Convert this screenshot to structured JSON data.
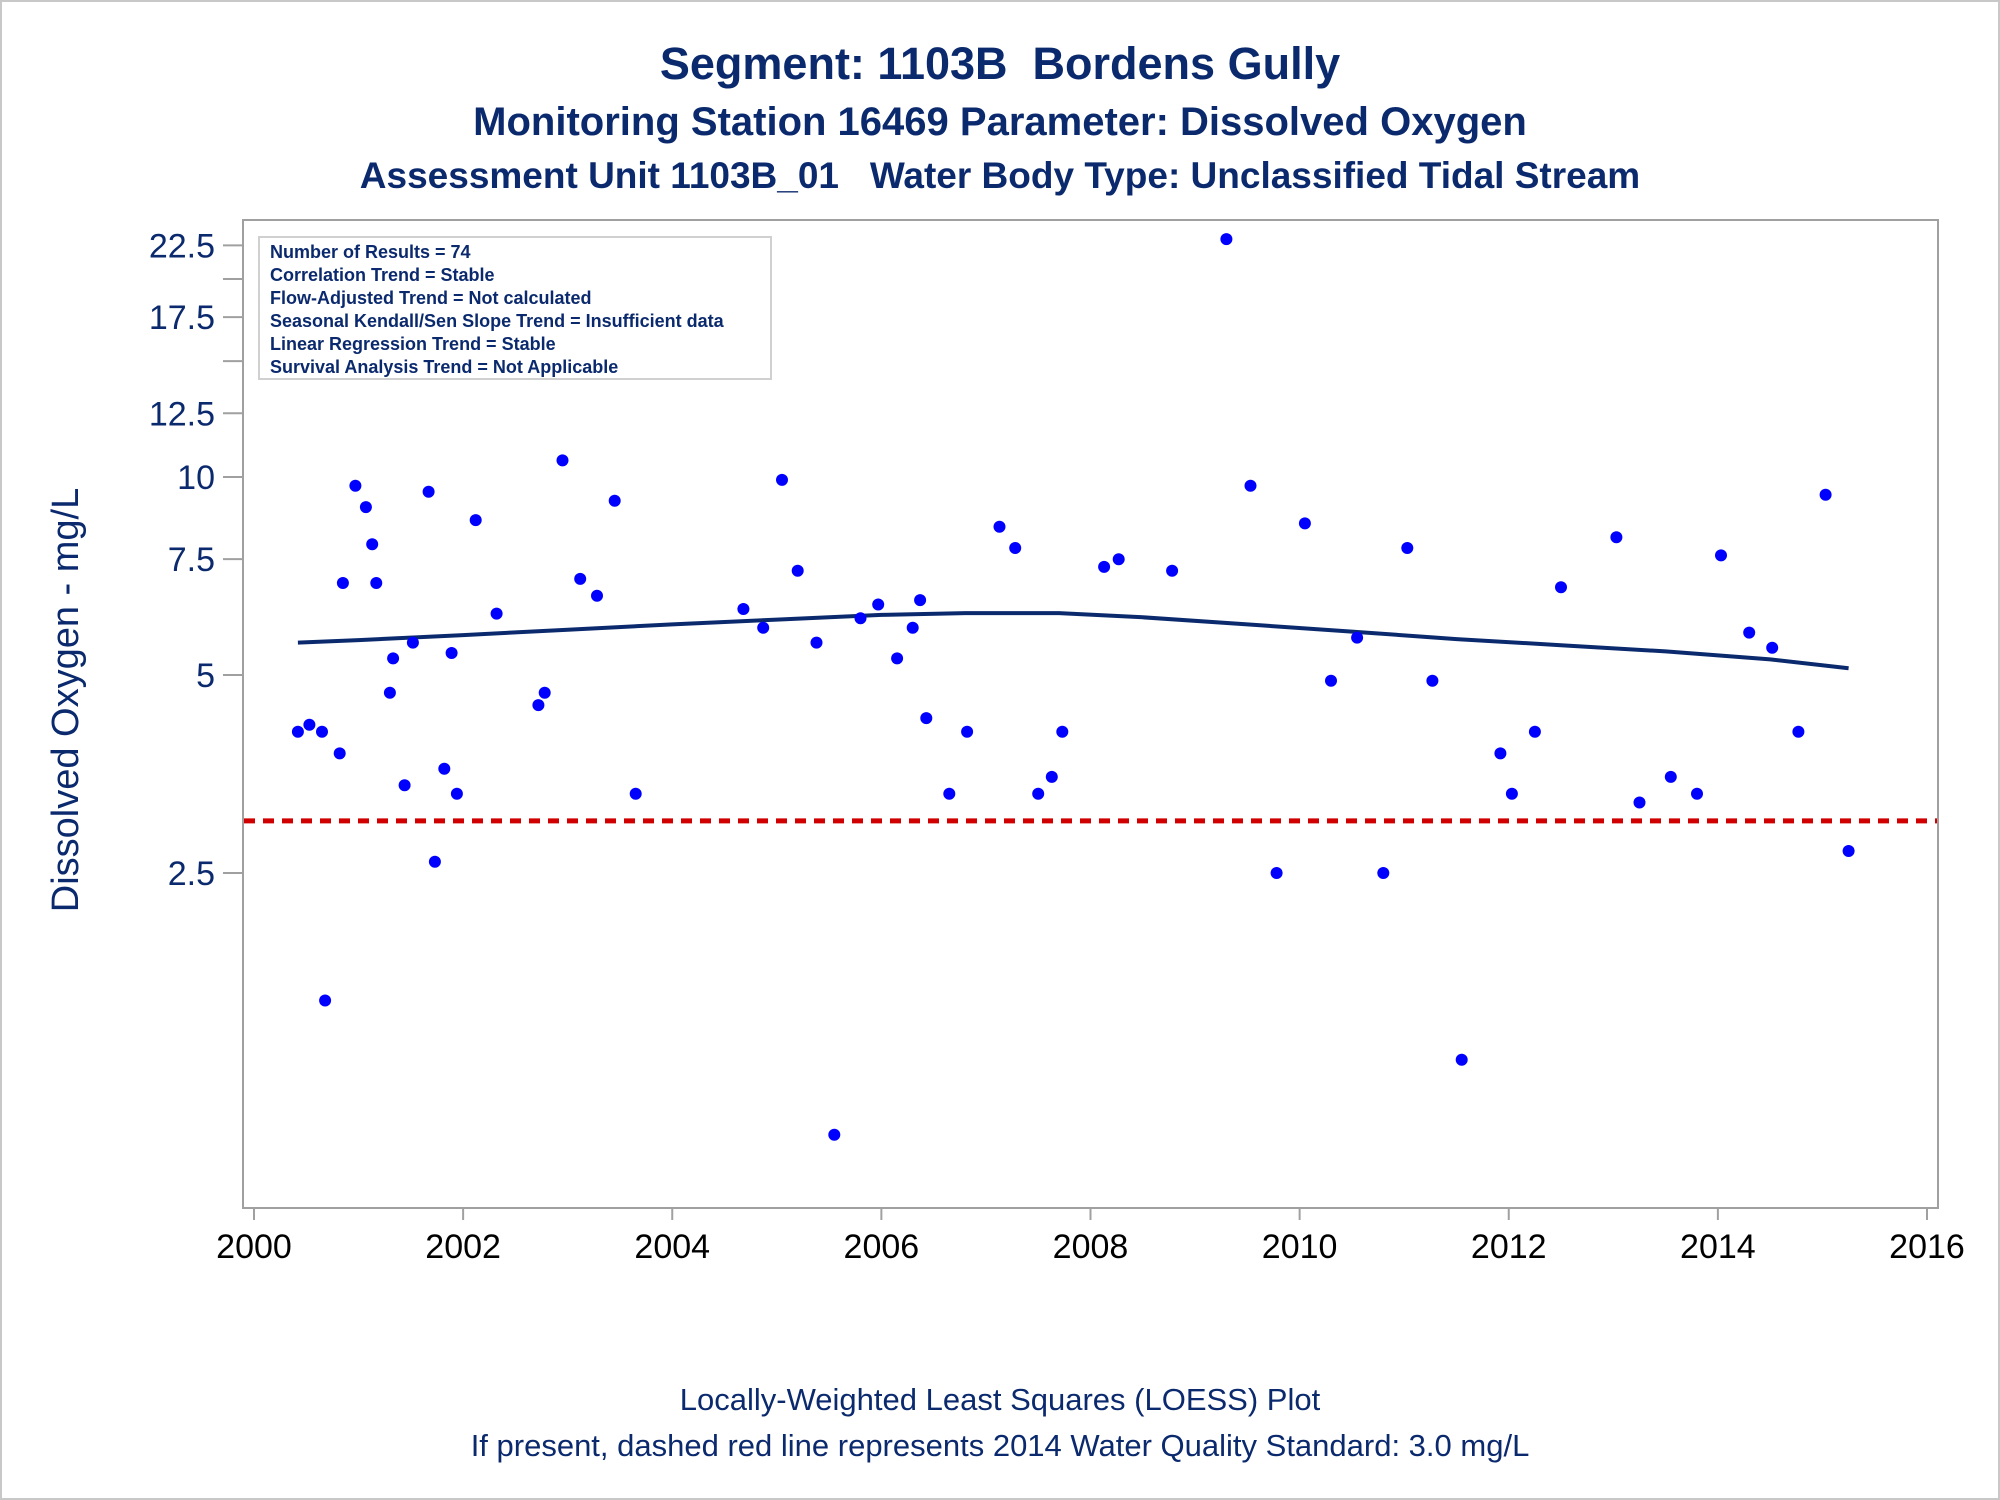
{
  "titles": {
    "line1": "Segment: 1103B  Bordens Gully",
    "line2": "Monitoring Station 16469 Parameter: Dissolved Oxygen",
    "line3": "Assessment Unit 1103B_01   Water Body Type: Unclassified Tidal Stream"
  },
  "stats": [
    "Number of Results = 74",
    "Correlation Trend = Stable",
    "Flow-Adjusted Trend = Not calculated",
    "Seasonal Kendall/Sen Slope Trend = Insufficient data",
    "Linear Regression Trend = Stable",
    "Survival Analysis Trend = Not Applicable"
  ],
  "footer": {
    "line1": "Locally-Weighted Least Squares (LOESS) Plot",
    "line2": "If present, dashed red line represents 2014 Water Quality Standard: 3.0 mg/L"
  },
  "colors": {
    "text": "#0b2a6e",
    "points": "#0000ff",
    "loess": "#0b2a6e",
    "standard": "#d00000",
    "frame": "#a0a0a0"
  },
  "chart_data": {
    "type": "scatter",
    "ylabel": "Dissolved Oxygen - mg/L",
    "xlabel": "",
    "y_scale": "log",
    "xlim": [
      2000,
      2016
    ],
    "ylim": [
      0.9,
      24
    ],
    "x_ticks": [
      2000,
      2002,
      2004,
      2006,
      2008,
      2010,
      2012,
      2014,
      2016
    ],
    "y_ticks": [
      2.5,
      5,
      7.5,
      10,
      12.5,
      17.5,
      22.5
    ],
    "y_minor_ticks": [
      15,
      20
    ],
    "standard_line": 3.0,
    "points": [
      [
        2000.42,
        4.1
      ],
      [
        2000.53,
        4.2
      ],
      [
        2000.65,
        4.1
      ],
      [
        2000.68,
        1.6
      ],
      [
        2000.82,
        3.8
      ],
      [
        2000.85,
        6.9
      ],
      [
        2000.97,
        9.7
      ],
      [
        2001.07,
        9.0
      ],
      [
        2001.13,
        7.9
      ],
      [
        2001.17,
        6.9
      ],
      [
        2001.3,
        4.7
      ],
      [
        2001.33,
        5.3
      ],
      [
        2001.44,
        3.4
      ],
      [
        2001.52,
        5.6
      ],
      [
        2001.67,
        9.5
      ],
      [
        2001.73,
        2.6
      ],
      [
        2001.82,
        3.6
      ],
      [
        2001.89,
        5.4
      ],
      [
        2001.94,
        3.3
      ],
      [
        2002.12,
        8.6
      ],
      [
        2002.32,
        6.2
      ],
      [
        2002.72,
        4.5
      ],
      [
        2002.78,
        4.7
      ],
      [
        2002.95,
        10.6
      ],
      [
        2003.12,
        7.0
      ],
      [
        2003.28,
        6.6
      ],
      [
        2003.45,
        9.2
      ],
      [
        2003.65,
        3.3
      ],
      [
        2004.68,
        6.3
      ],
      [
        2004.87,
        5.9
      ],
      [
        2005.05,
        9.9
      ],
      [
        2005.2,
        7.2
      ],
      [
        2005.38,
        5.6
      ],
      [
        2005.55,
        1.0
      ],
      [
        2005.8,
        6.1
      ],
      [
        2005.97,
        6.4
      ],
      [
        2006.15,
        5.3
      ],
      [
        2006.3,
        5.9
      ],
      [
        2006.37,
        6.5
      ],
      [
        2006.43,
        4.3
      ],
      [
        2006.65,
        3.3
      ],
      [
        2006.82,
        4.1
      ],
      [
        2007.13,
        8.4
      ],
      [
        2007.28,
        7.8
      ],
      [
        2007.5,
        3.3
      ],
      [
        2007.63,
        3.5
      ],
      [
        2007.73,
        4.1
      ],
      [
        2008.13,
        7.3
      ],
      [
        2008.27,
        7.5
      ],
      [
        2008.78,
        7.2
      ],
      [
        2009.3,
        23.0
      ],
      [
        2009.53,
        9.7
      ],
      [
        2009.78,
        2.5
      ],
      [
        2010.05,
        8.5
      ],
      [
        2010.3,
        4.9
      ],
      [
        2010.55,
        5.7
      ],
      [
        2010.8,
        2.5
      ],
      [
        2011.03,
        7.8
      ],
      [
        2011.27,
        4.9
      ],
      [
        2011.55,
        1.3
      ],
      [
        2011.92,
        3.8
      ],
      [
        2012.03,
        3.3
      ],
      [
        2012.25,
        4.1
      ],
      [
        2012.5,
        6.8
      ],
      [
        2013.03,
        8.1
      ],
      [
        2013.25,
        3.2
      ],
      [
        2013.55,
        3.5
      ],
      [
        2013.8,
        3.3
      ],
      [
        2014.03,
        7.6
      ],
      [
        2014.3,
        5.8
      ],
      [
        2014.52,
        5.5
      ],
      [
        2014.77,
        4.1
      ],
      [
        2015.03,
        9.4
      ],
      [
        2015.25,
        2.7
      ]
    ],
    "loess_curve": [
      [
        2000.42,
        5.6
      ],
      [
        2001.0,
        5.65
      ],
      [
        2002.0,
        5.75
      ],
      [
        2003.0,
        5.86
      ],
      [
        2004.0,
        5.97
      ],
      [
        2005.0,
        6.07
      ],
      [
        2006.0,
        6.17
      ],
      [
        2006.8,
        6.21
      ],
      [
        2007.7,
        6.21
      ],
      [
        2008.5,
        6.12
      ],
      [
        2009.5,
        5.97
      ],
      [
        2010.5,
        5.82
      ],
      [
        2011.5,
        5.67
      ],
      [
        2012.5,
        5.55
      ],
      [
        2013.5,
        5.43
      ],
      [
        2014.5,
        5.28
      ],
      [
        2015.25,
        5.12
      ]
    ]
  }
}
